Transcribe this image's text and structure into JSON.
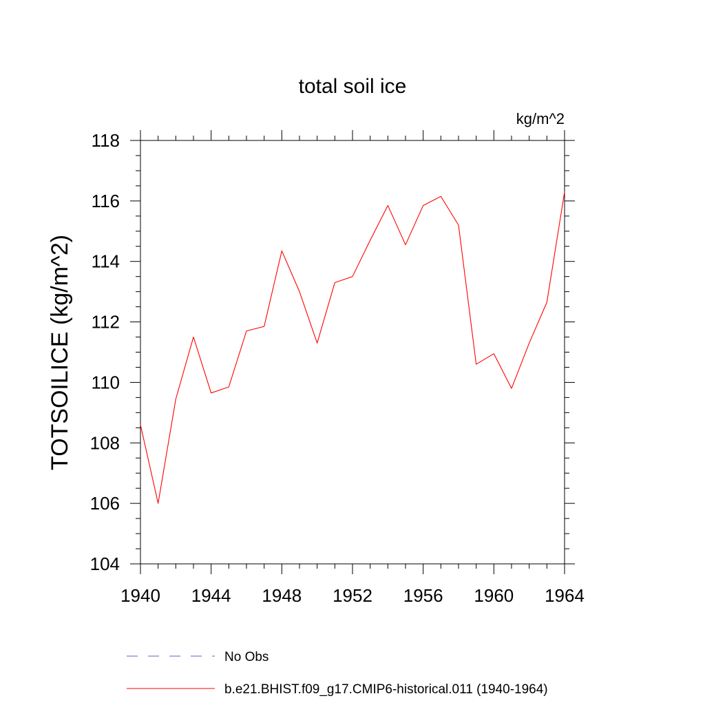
{
  "chart_data": {
    "type": "line",
    "title": "total soil ice",
    "units": "kg/m^2",
    "ylabel": "TOTSOILICE  (kg/m^2)",
    "xlabel": "",
    "xlim": [
      1940,
      1964
    ],
    "ylim": [
      104,
      118
    ],
    "xticks": [
      "1940",
      "1944",
      "1948",
      "1952",
      "1956",
      "1960",
      "1964"
    ],
    "yticks": [
      "104",
      "106",
      "108",
      "110",
      "112",
      "114",
      "116",
      "118"
    ],
    "grid": false,
    "legend_position": "bottom",
    "series": [
      {
        "name": "b.e21.BHIST.f09_g17.CMIP6-historical.011 (1940-1964)",
        "color": "#ff0000",
        "style": "solid",
        "x": [
          1940,
          1941,
          1942,
          1943,
          1944,
          1945,
          1946,
          1947,
          1948,
          1949,
          1950,
          1951,
          1952,
          1953,
          1954,
          1955,
          1956,
          1957,
          1958,
          1959,
          1960,
          1961,
          1962,
          1963,
          1964
        ],
        "values": [
          108.6,
          106.0,
          109.45,
          111.5,
          109.65,
          109.85,
          111.7,
          111.85,
          114.35,
          113.0,
          111.3,
          113.3,
          113.5,
          114.7,
          115.85,
          114.55,
          115.85,
          116.15,
          115.2,
          110.6,
          110.95,
          109.8,
          111.3,
          112.65,
          116.3
        ]
      }
    ],
    "legend": [
      {
        "label": "No Obs",
        "color": "#6a5acd",
        "style": "dashed"
      },
      {
        "label": "b.e21.BHIST.f09_g17.CMIP6-historical.011 (1940-1964)",
        "color": "#ff0000",
        "style": "solid"
      }
    ]
  }
}
